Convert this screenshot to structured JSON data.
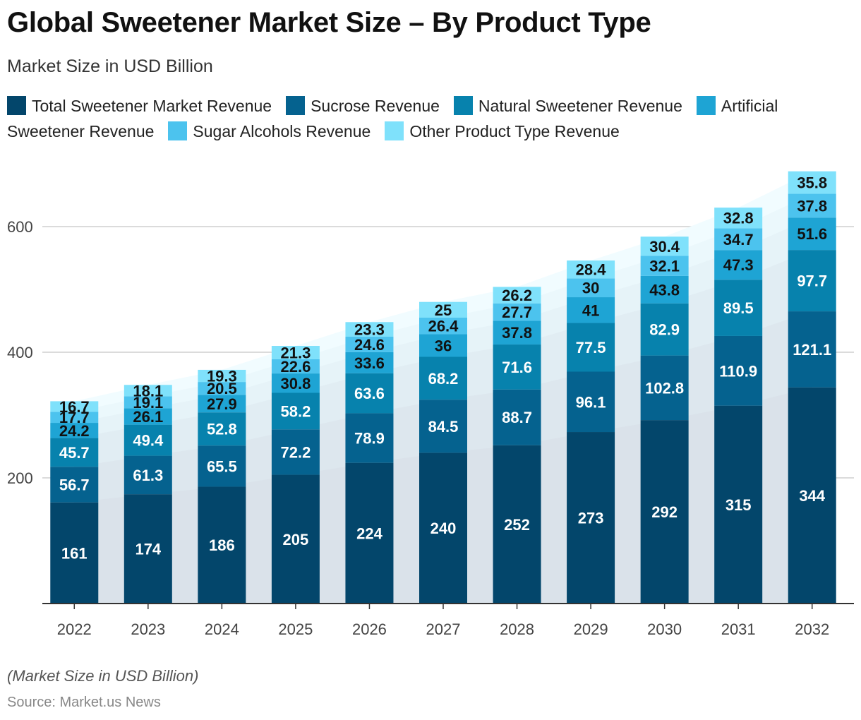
{
  "title": "Global Sweetener Market Size – By Product Type",
  "subtitle": "Market Size in USD Billion",
  "footnote": "(Market Size in USD Billion)",
  "source": "Source: Market.us News",
  "chart_data": {
    "type": "bar",
    "stacked": true,
    "categories": [
      "2022",
      "2023",
      "2024",
      "2025",
      "2026",
      "2027",
      "2028",
      "2029",
      "2030",
      "2031",
      "2032"
    ],
    "series": [
      {
        "name": "Total Sweetener Market Revenue",
        "color": "#03466b",
        "values": [
          161,
          174,
          186,
          205,
          224,
          240,
          252,
          273,
          292,
          315,
          344
        ]
      },
      {
        "name": "Sucrose Revenue",
        "color": "#05628f",
        "values": [
          56.7,
          61.3,
          65.5,
          72.2,
          78.9,
          84.5,
          88.7,
          96.1,
          102.8,
          110.9,
          121.1
        ]
      },
      {
        "name": "Natural Sweetener Revenue",
        "color": "#0782ad",
        "values": [
          45.7,
          49.4,
          52.8,
          58.2,
          63.6,
          68.2,
          71.6,
          77.5,
          82.9,
          89.5,
          97.7
        ]
      },
      {
        "name": "Artificial Sweetener Revenue",
        "color": "#1ea4d4",
        "values": [
          24.2,
          26.1,
          27.9,
          30.8,
          33.6,
          36,
          37.8,
          41,
          43.8,
          47.3,
          51.6
        ]
      },
      {
        "name": "Sugar Alcohols Revenue",
        "color": "#4cc3ee",
        "values": [
          17.7,
          19.1,
          20.5,
          22.6,
          24.6,
          26.4,
          27.7,
          30,
          32.1,
          34.7,
          37.8
        ]
      },
      {
        "name": "Other Product Type Revenue",
        "color": "#7fe1fb",
        "values": [
          16.7,
          18.1,
          19.3,
          21.3,
          23.3,
          25,
          26.2,
          28.4,
          30.4,
          32.8,
          35.8
        ]
      }
    ],
    "yticks": [
      200,
      400,
      600
    ],
    "ylim": [
      0,
      700
    ],
    "grid": true,
    "legend_position": "top-left"
  }
}
